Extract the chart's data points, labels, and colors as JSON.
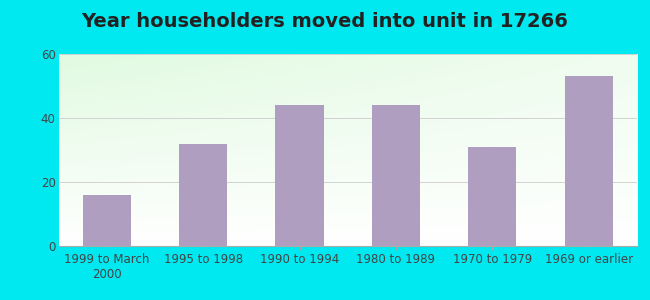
{
  "title": "Year householders moved into unit in 17266",
  "categories": [
    "1999 to March\n2000",
    "1995 to 1998",
    "1990 to 1994",
    "1980 to 1989",
    "1970 to 1979",
    "1969 or earlier"
  ],
  "values": [
    16,
    32,
    44,
    44,
    31,
    53
  ],
  "bar_color": "#b09ec0",
  "background_outer": "#00e8f0",
  "ylim": [
    0,
    60
  ],
  "yticks": [
    0,
    20,
    40,
    60
  ],
  "title_fontsize": 14,
  "tick_fontsize": 8.5,
  "gradient_bottom_left": "#d4edd8",
  "gradient_top_right": "#f8fff8"
}
